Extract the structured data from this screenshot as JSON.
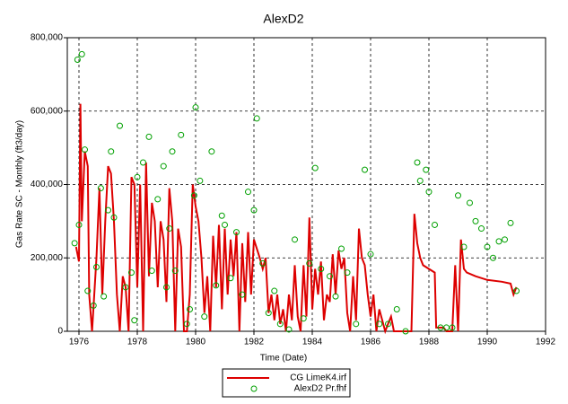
{
  "chart_data": {
    "type": "line",
    "title": "AlexD2",
    "x_label": "Time (Date)",
    "y_label": "Gas Rate SC - Monthly (ft3/day)",
    "xlim": [
      1975.6,
      1992
    ],
    "xticks": [
      1976,
      1978,
      1980,
      1982,
      1984,
      1986,
      1988,
      1990,
      1992
    ],
    "ylim": [
      0,
      800000
    ],
    "yticks": [
      0,
      {
        "value": 200000,
        "label": "200,000"
      },
      {
        "value": 400000,
        "label": "400,000"
      },
      {
        "value": 600000,
        "label": "600,000"
      },
      {
        "value": 800000,
        "label": "800,000"
      }
    ],
    "grid": true,
    "legend": "bottom",
    "series": [
      {
        "name": "CG LimeK4.irf",
        "type": "line",
        "color": "#dd0000",
        "x": [
          1975.9,
          1976.0,
          1976.05,
          1976.1,
          1976.2,
          1976.3,
          1976.35,
          1976.45,
          1976.6,
          1976.7,
          1976.8,
          1976.9,
          1977.0,
          1977.1,
          1977.2,
          1977.3,
          1977.4,
          1977.5,
          1977.6,
          1977.7,
          1977.8,
          1977.9,
          1978.0,
          1978.1,
          1978.2,
          1978.3,
          1978.4,
          1978.5,
          1978.6,
          1978.7,
          1978.8,
          1978.9,
          1979.0,
          1979.1,
          1979.2,
          1979.3,
          1979.4,
          1979.5,
          1979.6,
          1979.7,
          1979.8,
          1979.9,
          1980.0,
          1980.1,
          1980.2,
          1980.3,
          1980.4,
          1980.5,
          1980.6,
          1980.7,
          1980.8,
          1980.9,
          1981.0,
          1981.1,
          1981.2,
          1981.3,
          1981.4,
          1981.5,
          1981.6,
          1981.7,
          1981.8,
          1981.9,
          1982.0,
          1982.2,
          1982.3,
          1982.4,
          1982.5,
          1982.6,
          1982.7,
          1982.8,
          1982.9,
          1983.0,
          1983.1,
          1983.2,
          1983.3,
          1983.4,
          1983.5,
          1983.6,
          1983.7,
          1983.8,
          1983.9,
          1984.0,
          1984.1,
          1984.2,
          1984.3,
          1984.4,
          1984.5,
          1984.6,
          1984.7,
          1984.8,
          1984.9,
          1985.0,
          1985.1,
          1985.2,
          1985.3,
          1985.4,
          1985.5,
          1985.6,
          1985.7,
          1985.8,
          1985.9,
          1986.0,
          1986.1,
          1986.2,
          1986.3,
          1986.4,
          1986.5,
          1986.6,
          1986.7,
          1986.8,
          1987.0,
          1987.4,
          1987.5,
          1987.6,
          1987.7,
          1987.8,
          1988.0,
          1988.2,
          1988.25,
          1988.5,
          1988.6,
          1988.8,
          1988.9,
          1989.0,
          1989.1,
          1989.2,
          1989.3,
          1989.6,
          1990.0,
          1990.5,
          1990.8,
          1990.9,
          1991.0
        ],
        "values": [
          230000,
          190000,
          620000,
          300000,
          490000,
          450000,
          100000,
          0,
          200000,
          390000,
          100000,
          300000,
          450000,
          430000,
          300000,
          100000,
          0,
          150000,
          120000,
          0,
          420000,
          400000,
          120000,
          400000,
          0,
          460000,
          150000,
          350000,
          300000,
          120000,
          300000,
          250000,
          80000,
          390000,
          300000,
          0,
          280000,
          230000,
          0,
          0,
          100000,
          400000,
          340000,
          300000,
          200000,
          50000,
          150000,
          0,
          260000,
          120000,
          290000,
          60000,
          280000,
          100000,
          250000,
          150000,
          270000,
          0,
          240000,
          80000,
          270000,
          100000,
          250000,
          200000,
          170000,
          200000,
          50000,
          100000,
          30000,
          100000,
          20000,
          60000,
          0,
          100000,
          30000,
          180000,
          40000,
          0,
          180000,
          40000,
          310000,
          60000,
          170000,
          100000,
          190000,
          30000,
          100000,
          80000,
          210000,
          100000,
          220000,
          170000,
          200000,
          50000,
          0,
          150000,
          30000,
          280000,
          200000,
          180000,
          100000,
          40000,
          100000,
          0,
          60000,
          30000,
          0,
          20000,
          40000,
          0,
          0,
          0,
          320000,
          240000,
          200000,
          180000,
          170000,
          160000,
          10000,
          10000,
          0,
          0,
          180000,
          0,
          250000,
          170000,
          160000,
          150000,
          140000,
          135000,
          130000,
          100000,
          120000
        ]
      },
      {
        "name": "AlexD2 Pr.fhf",
        "type": "scatter",
        "color": "#00a000",
        "x": [
          1975.85,
          1975.95,
          1976.0,
          1976.1,
          1976.2,
          1976.3,
          1976.5,
          1976.6,
          1976.75,
          1976.85,
          1977.0,
          1977.1,
          1977.2,
          1977.4,
          1977.6,
          1977.8,
          1977.9,
          1978.0,
          1978.2,
          1978.4,
          1978.5,
          1978.7,
          1978.9,
          1979.0,
          1979.1,
          1979.2,
          1979.3,
          1979.5,
          1979.7,
          1979.8,
          1979.95,
          1980.0,
          1980.15,
          1980.3,
          1980.55,
          1980.7,
          1980.9,
          1981.0,
          1981.2,
          1981.4,
          1981.6,
          1981.8,
          1982.0,
          1982.1,
          1982.3,
          1982.5,
          1982.7,
          1982.9,
          1983.2,
          1983.4,
          1983.7,
          1983.9,
          1984.1,
          1984.3,
          1984.6,
          1984.8,
          1985.0,
          1985.2,
          1985.5,
          1985.8,
          1986.0,
          1986.3,
          1986.6,
          1986.9,
          1987.2,
          1987.6,
          1987.7,
          1987.9,
          1988.0,
          1988.2,
          1988.4,
          1988.6,
          1988.8,
          1989.0,
          1989.2,
          1989.4,
          1989.6,
          1989.8,
          1990.0,
          1990.2,
          1990.4,
          1990.6,
          1990.8,
          1991.0
        ],
        "values": [
          240000,
          740000,
          290000,
          755000,
          495000,
          110000,
          70000,
          175000,
          390000,
          95000,
          330000,
          490000,
          310000,
          560000,
          120000,
          160000,
          30000,
          420000,
          460000,
          530000,
          165000,
          360000,
          450000,
          120000,
          280000,
          490000,
          165000,
          535000,
          20000,
          60000,
          370000,
          610000,
          410000,
          40000,
          490000,
          125000,
          315000,
          290000,
          145000,
          270000,
          100000,
          380000,
          330000,
          580000,
          185000,
          50000,
          110000,
          20000,
          5000,
          250000,
          35000,
          185000,
          445000,
          170000,
          150000,
          95000,
          225000,
          160000,
          20000,
          440000,
          210000,
          20000,
          20000,
          60000,
          0,
          460000,
          410000,
          440000,
          380000,
          290000,
          10000,
          10000,
          10000,
          370000,
          230000,
          350000,
          300000,
          280000,
          230000,
          200000,
          245000,
          250000,
          295000,
          110000
        ]
      }
    ]
  }
}
